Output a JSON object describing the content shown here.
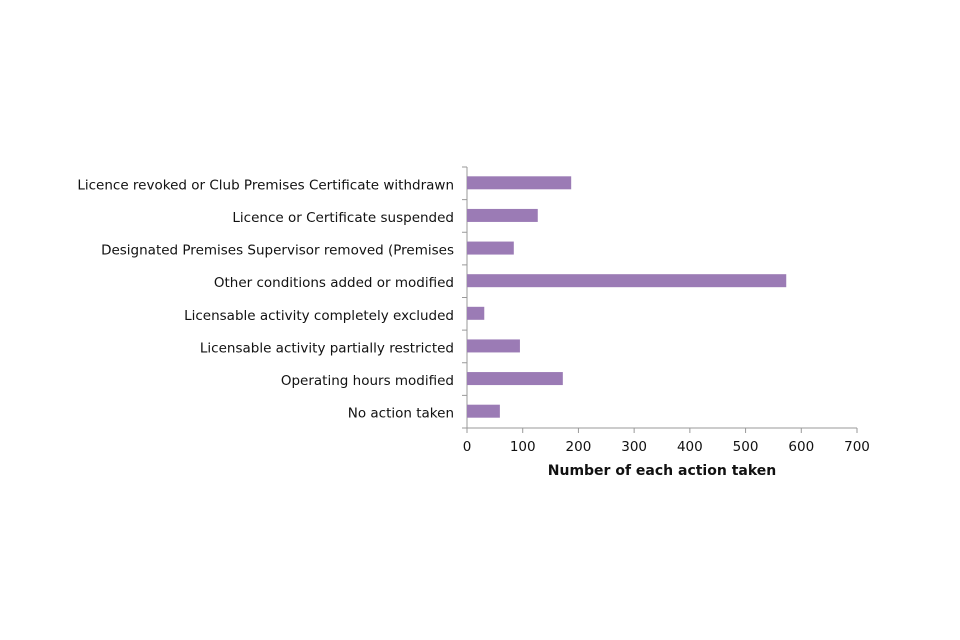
{
  "chart_data": {
    "type": "hbar",
    "x_label": "Number of each action taken",
    "categories": [
      "Licence revoked or Club Premises Certificate withdrawn",
      "Licence or Certificate suspended",
      "Designated Premises Supervisor removed (Premises",
      "Other conditions added or modified",
      "Licensable activity completely excluded",
      "Licensable activity partially restricted",
      "Operating hours modified",
      "No action taken"
    ],
    "values": [
      187,
      127,
      84,
      573,
      31,
      95,
      172,
      59
    ],
    "color": "#9b7bb5",
    "xlim": [
      0,
      700
    ],
    "xticks": [
      0,
      100,
      200,
      300,
      400,
      500,
      600,
      700
    ],
    "grid": false
  }
}
